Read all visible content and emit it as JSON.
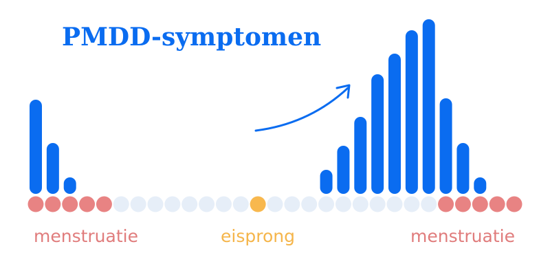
{
  "chart_data": {
    "type": "bar",
    "title": "PMDD-symptomen",
    "categories": [
      null,
      null,
      null,
      null,
      null,
      null,
      null,
      null,
      null,
      null,
      null,
      null,
      null,
      null,
      null,
      null,
      null,
      null,
      null,
      null,
      null,
      null,
      null,
      null,
      null,
      null,
      null,
      null,
      null
    ],
    "values": [
      137,
      74,
      24,
      null,
      null,
      null,
      null,
      null,
      null,
      null,
      null,
      null,
      null,
      null,
      null,
      null,
      null,
      35,
      70,
      112,
      174,
      204,
      238,
      254,
      139,
      74,
      24,
      null,
      null
    ],
    "color": "#0a6cf0",
    "ylim": [
      0,
      254
    ],
    "day_colors": [
      "#e88383",
      "#e88383",
      "#e88383",
      "#e88383",
      "#e88383",
      "#e6eef8",
      "#e6eef8",
      "#e6eef8",
      "#e6eef8",
      "#e6eef8",
      "#e6eef8",
      "#e6eef8",
      "#e6eef8",
      "#f8b84e",
      "#e6eef8",
      "#e6eef8",
      "#e6eef8",
      "#e6eef8",
      "#e6eef8",
      "#e6eef8",
      "#e6eef8",
      "#e6eef8",
      "#e6eef8",
      "#e6eef8",
      "#e88383",
      "#e88383",
      "#e88383",
      "#e88383",
      "#e88383"
    ],
    "annotations": [
      {
        "text": "menstruatie",
        "color": "#e07c7c"
      },
      {
        "text": "eisprong",
        "color": "#f5b54a"
      },
      {
        "text": "menstruatie",
        "color": "#e07c7c"
      }
    ]
  }
}
